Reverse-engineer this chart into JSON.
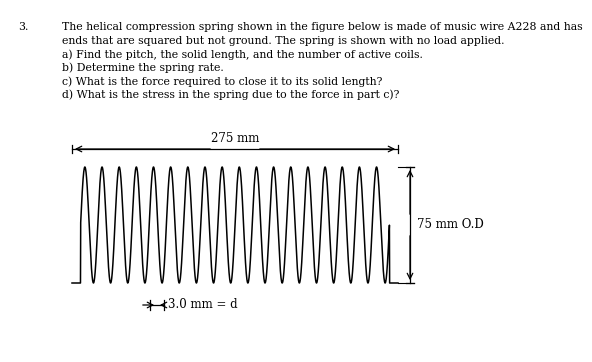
{
  "title_number": "3.",
  "line1": "The helical compression spring shown in the figure below is made of music wire A228 and has",
  "line2": "ends that are squared but not ground. The spring is shown with no load applied.",
  "line3": "a) Find the pitch, the solid length, and the number of active coils.",
  "line4": "b) Determine the spring rate.",
  "line5": "c) What is the force required to close it to its solid length?",
  "line6": "d) What is the stress in the spring due to the force in part c)?",
  "spring_length_label": "275 mm",
  "spring_od_label": "75 mm O.D",
  "wire_dia_label": "3.0 mm = d",
  "background_color": "#ffffff",
  "line_color": "#000000",
  "num_coils": 19,
  "text_fontsize": 7.8,
  "label_fontsize": 8.5,
  "spring_lw": 1.1
}
